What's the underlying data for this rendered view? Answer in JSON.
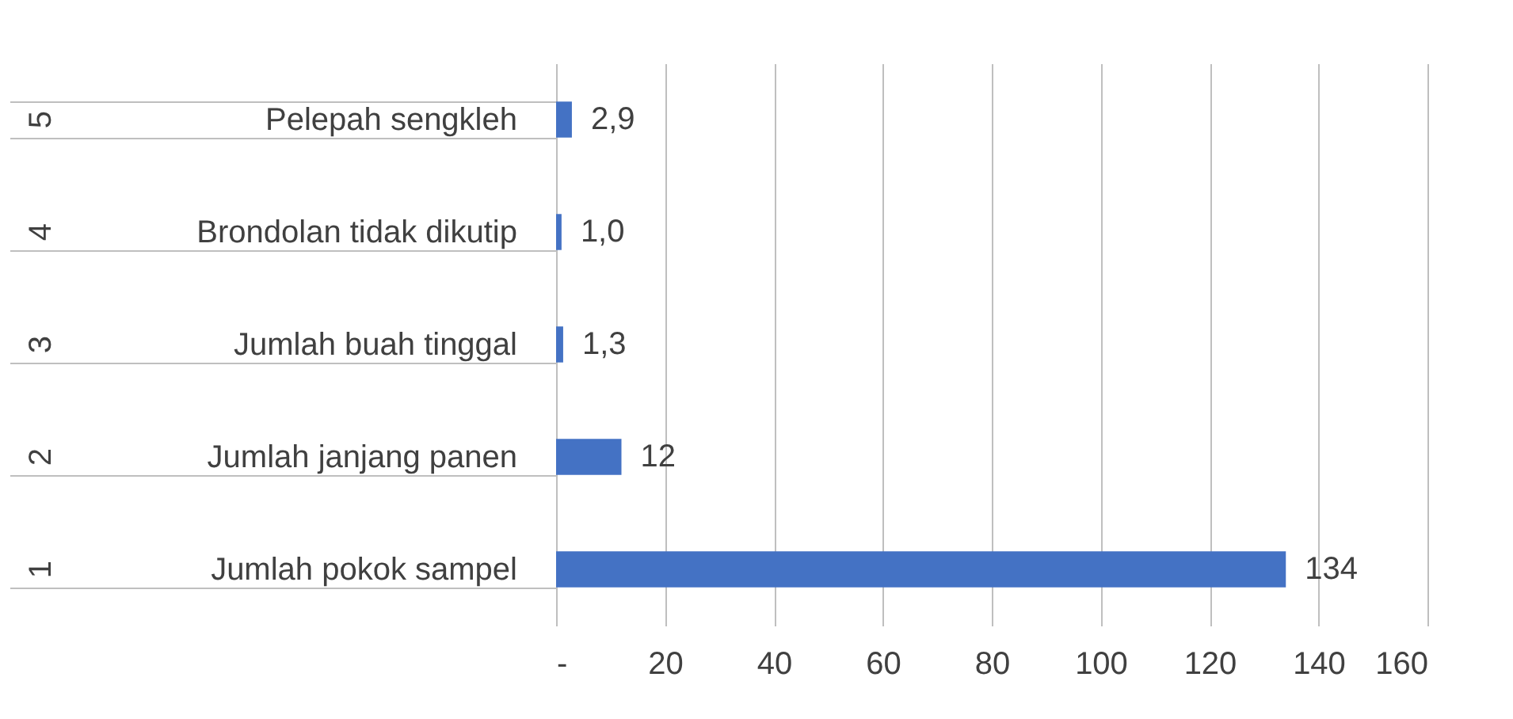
{
  "chart_data": {
    "type": "bar",
    "orientation": "horizontal",
    "categories": [
      "Pelepah sengkleh",
      "Brondolan tidak dikutip",
      "Jumlah buah tinggal",
      "Jumlah janjang panen",
      "Jumlah pokok sampel"
    ],
    "values": [
      2.9,
      1.0,
      1.3,
      12,
      134
    ],
    "value_labels": [
      "2,9",
      "1,0",
      "1,3",
      "12",
      "134"
    ],
    "color": "#4472c4",
    "xlim": [
      0,
      160
    ],
    "xticks": [
      {
        "value": 0,
        "label": "-"
      },
      20,
      40,
      60,
      80,
      100,
      120,
      140,
      160
    ],
    "grid": "x",
    "annotations": [
      "5",
      "4",
      "3",
      "2",
      "1"
    ]
  }
}
